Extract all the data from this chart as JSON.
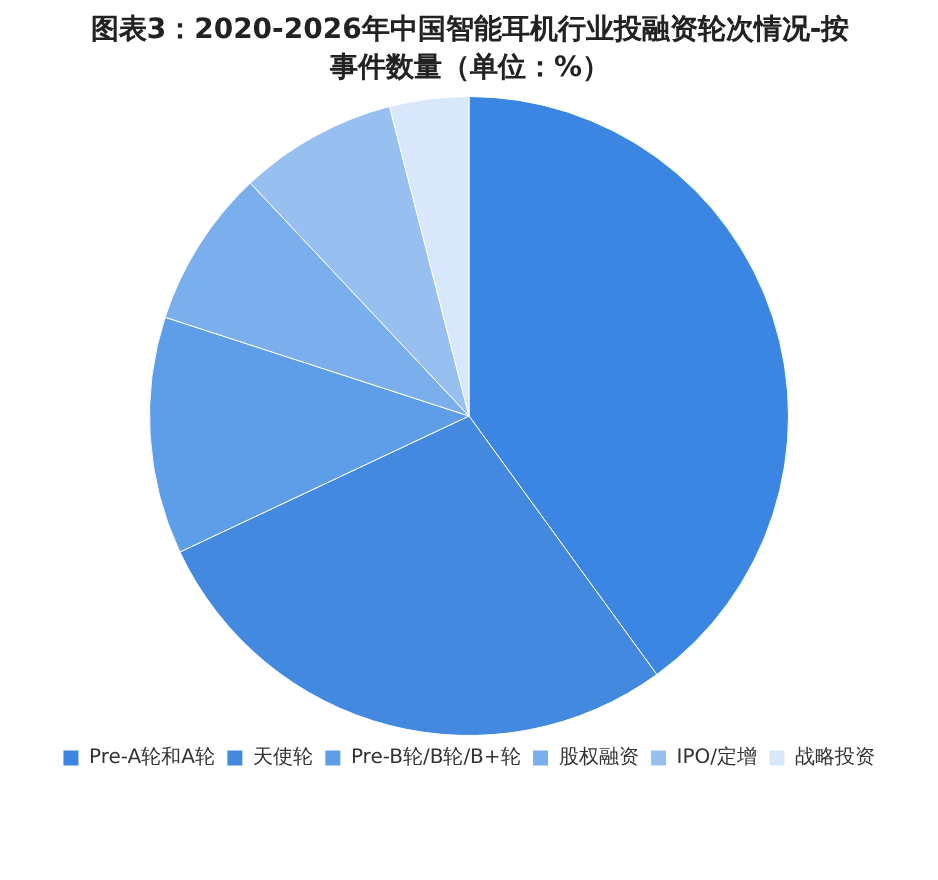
{
  "chart_data": {
    "type": "pie",
    "title": "图表3：2020-2026年中国智能耳机行业投融资轮次情况-按事件数量（单位：%）",
    "categories": [
      "Pre-A轮和A轮",
      "天使轮",
      "Pre-B轮/B轮/B+轮",
      "股权融资",
      "IPO/定增",
      "战略投资"
    ],
    "values": [
      40,
      28,
      12,
      8,
      8,
      4
    ],
    "colors": [
      "#3a86e2",
      "#4489e0",
      "#5e9de8",
      "#7aaeec",
      "#97c0f1",
      "#d8e7fa"
    ],
    "legend": "bottom"
  }
}
